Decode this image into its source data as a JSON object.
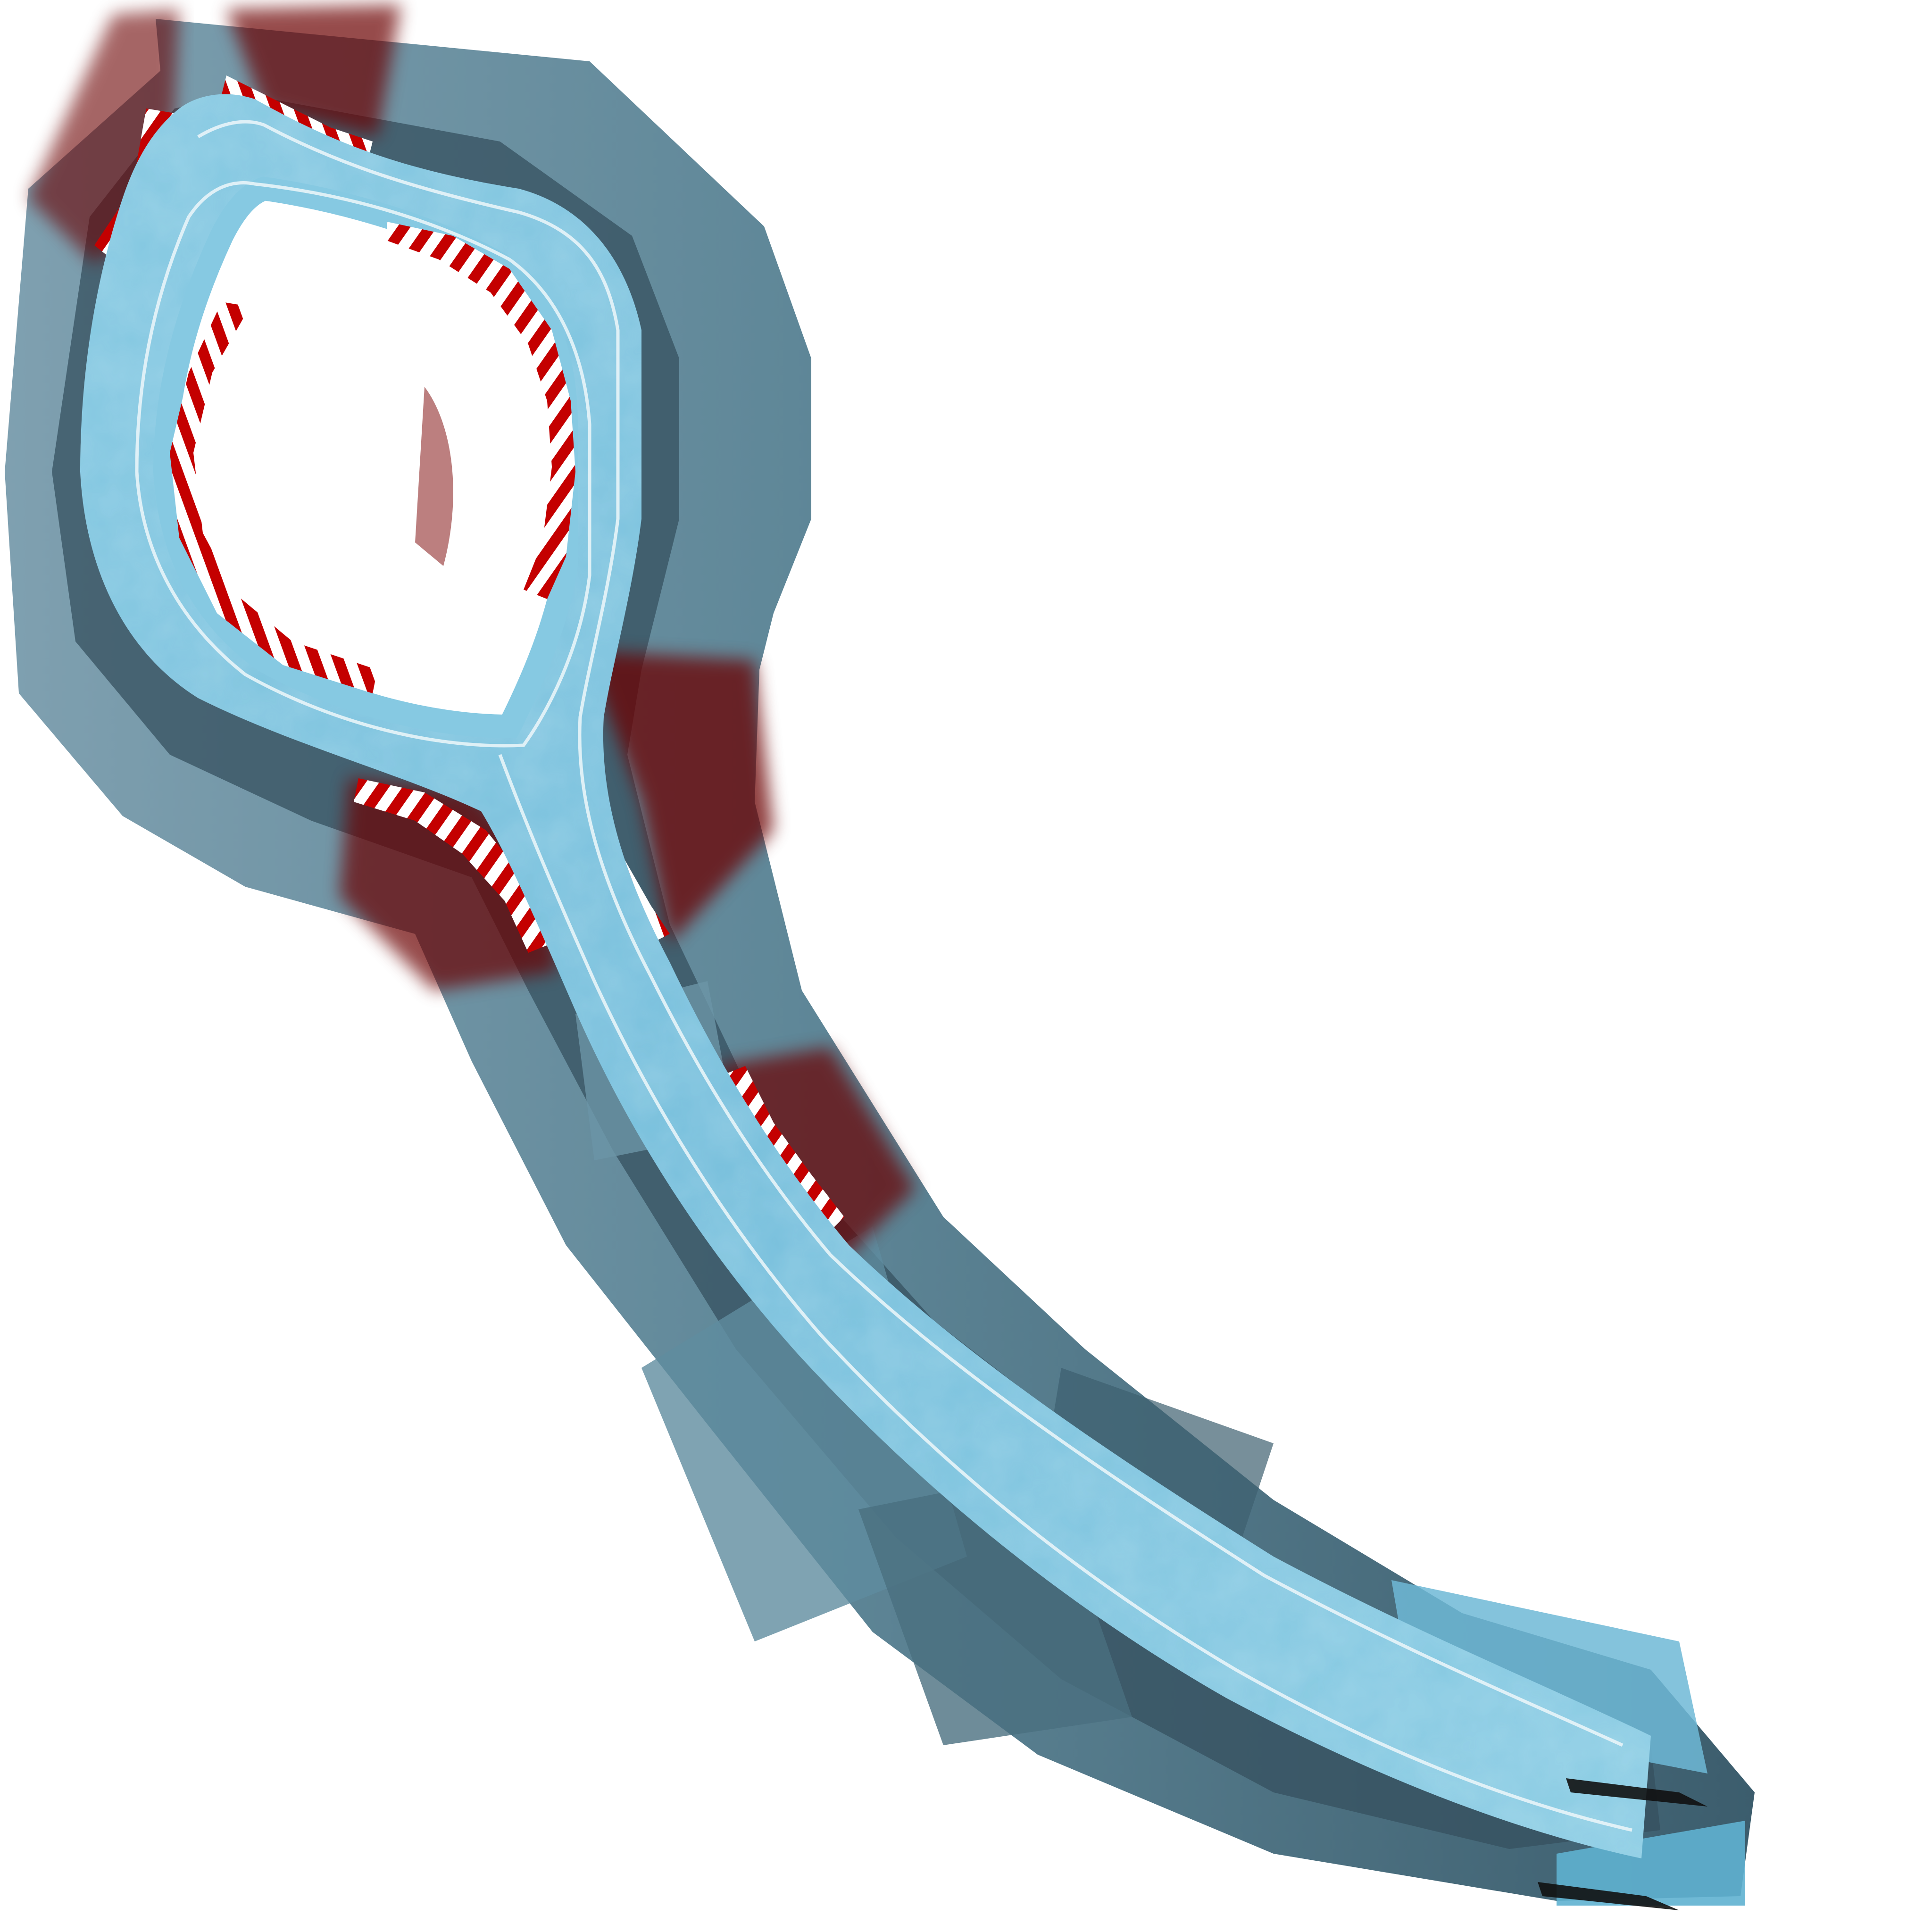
{
  "scene": {
    "description_kind": "top-down race track texture",
    "background_color": "#ffffff",
    "colors": {
      "ice": "#7cc3de",
      "ice_light": "#a6dbee",
      "ice_dark": "#5aa8c8",
      "bank_light": "#7fa0b0",
      "bank_mid": "#4f7384",
      "bank_dark": "#243847",
      "curb_red": "#c40000",
      "curb_dark_red": "#6a0000",
      "curb_white": "#ffffff",
      "lane_line": "#e8f4f8",
      "black_mark": "#111111"
    },
    "icons": {
      "track": "track-loop-icon",
      "curb": "curb-stripe-icon",
      "start_marks": "start-line-icon"
    }
  }
}
